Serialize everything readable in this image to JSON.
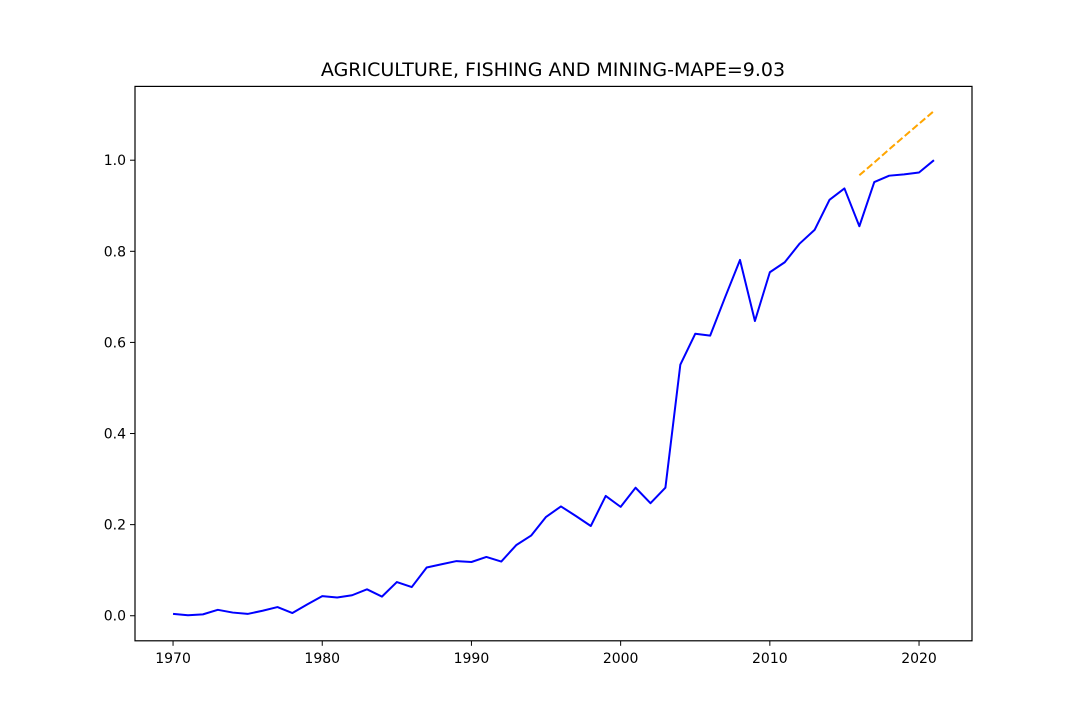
{
  "chart_data": {
    "type": "line",
    "title": "AGRICULTURE, FISHING AND MINING-MAPE=9.03",
    "xlabel": "",
    "ylabel": "",
    "xlim": [
      1967.45,
      2023.55
    ],
    "ylim": [
      -0.055,
      1.162
    ],
    "x_ticks": [
      1970,
      1980,
      1990,
      2000,
      2010,
      2020
    ],
    "y_ticks": [
      0.0,
      0.2,
      0.4,
      0.6,
      0.8,
      1.0
    ],
    "y_tick_labels": [
      "0.0",
      "0.2",
      "0.4",
      "0.6",
      "0.8",
      "1.0"
    ],
    "grid": false,
    "legend": "none",
    "series": [
      {
        "color": "#0000ff",
        "style": "solid",
        "x": [
          1970,
          1971,
          1972,
          1973,
          1974,
          1975,
          1976,
          1977,
          1978,
          1979,
          1980,
          1981,
          1982,
          1983,
          1984,
          1985,
          1986,
          1987,
          1988,
          1989,
          1990,
          1991,
          1992,
          1993,
          1994,
          1995,
          1996,
          1997,
          1998,
          1999,
          2000,
          2001,
          2002,
          2003,
          2004,
          2005,
          2006,
          2007,
          2008,
          2009,
          2010,
          2011,
          2012,
          2013,
          2014,
          2015,
          2016,
          2017,
          2018,
          2019,
          2020,
          2021
        ],
        "values": [
          0.004,
          0.001,
          0.003,
          0.013,
          0.007,
          0.004,
          0.011,
          0.019,
          0.006,
          0.025,
          0.043,
          0.04,
          0.045,
          0.058,
          0.042,
          0.074,
          0.063,
          0.106,
          0.113,
          0.12,
          0.118,
          0.129,
          0.119,
          0.155,
          0.176,
          0.217,
          0.24,
          0.219,
          0.197,
          0.263,
          0.239,
          0.281,
          0.247,
          0.281,
          0.551,
          0.619,
          0.615,
          0.699,
          0.781,
          0.647,
          0.754,
          0.776,
          0.817,
          0.847,
          0.913,
          0.938,
          0.855,
          0.952,
          0.966,
          0.969,
          0.973,
          1.0
        ]
      },
      {
        "color": "#ffa500",
        "style": "dashed",
        "x": [
          2016,
          2017,
          2018,
          2019,
          2020,
          2021
        ],
        "values": [
          0.967,
          0.995,
          1.024,
          1.052,
          1.08,
          1.108
        ]
      }
    ]
  }
}
